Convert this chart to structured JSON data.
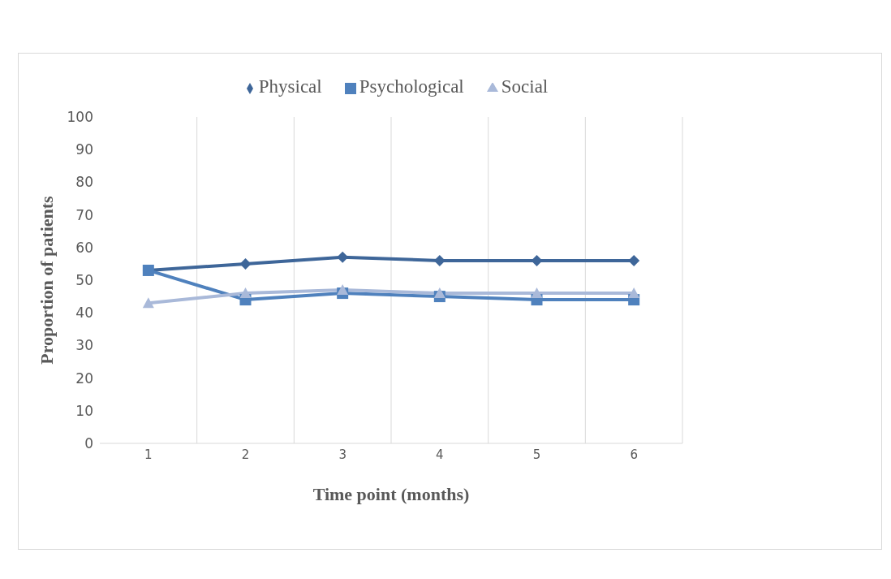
{
  "chart_data": {
    "type": "line",
    "xlabel": "Time point (months)",
    "ylabel": "Proportion of patients",
    "categories": [
      "1",
      "2",
      "3",
      "4",
      "5",
      "6"
    ],
    "series": [
      {
        "name": "Physical",
        "color": "#3e6699",
        "marker": "diamond",
        "values": [
          53,
          55,
          57,
          56,
          56,
          56
        ]
      },
      {
        "name": "Psychological",
        "color": "#4f81bd",
        "marker": "square",
        "values": [
          53,
          44,
          46,
          45,
          44,
          44
        ]
      },
      {
        "name": "Social",
        "color": "#a9b9d9",
        "marker": "triangle",
        "values": [
          43,
          46,
          47,
          46,
          46,
          46
        ]
      }
    ],
    "ylim": [
      0,
      100
    ],
    "yticks": [
      0,
      10,
      20,
      30,
      40,
      50,
      60,
      70,
      80,
      90,
      100
    ],
    "grid": "x",
    "legend": "top"
  }
}
